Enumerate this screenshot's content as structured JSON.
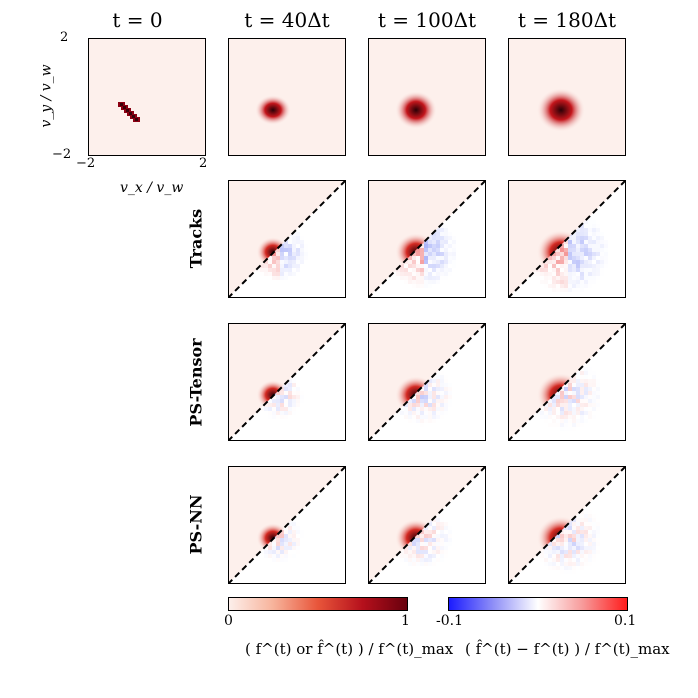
{
  "columns": [
    "t = 0",
    "t = 40Δt",
    "t = 100Δt",
    "t = 180Δt"
  ],
  "rows": [
    "Tracks",
    "PS-Tensor",
    "PS-NN"
  ],
  "axes": {
    "xlabel": "v_x / v_w",
    "ylabel": "v_y / v_w",
    "x_ticks": [
      "−2",
      "2"
    ],
    "y_ticks": [
      "2",
      "−2"
    ]
  },
  "colorbar_left": {
    "min_label": "0",
    "max_label": "1",
    "label": "( f^(t) or f̂^(t) ) / f^(t)_max",
    "colors": [
      "#fdf0ec",
      "#f7b39b",
      "#e8553a",
      "#b5101c",
      "#67000d"
    ]
  },
  "colorbar_right": {
    "min_label": "-0.1",
    "max_label": "0.1",
    "label": "( f̂^(t) − f^(t) ) / f^(t)_max",
    "colors": [
      "#1a1aff",
      "#8f8ff7",
      "#ffffff",
      "#f79a9a",
      "#ff1a1a"
    ]
  }
}
